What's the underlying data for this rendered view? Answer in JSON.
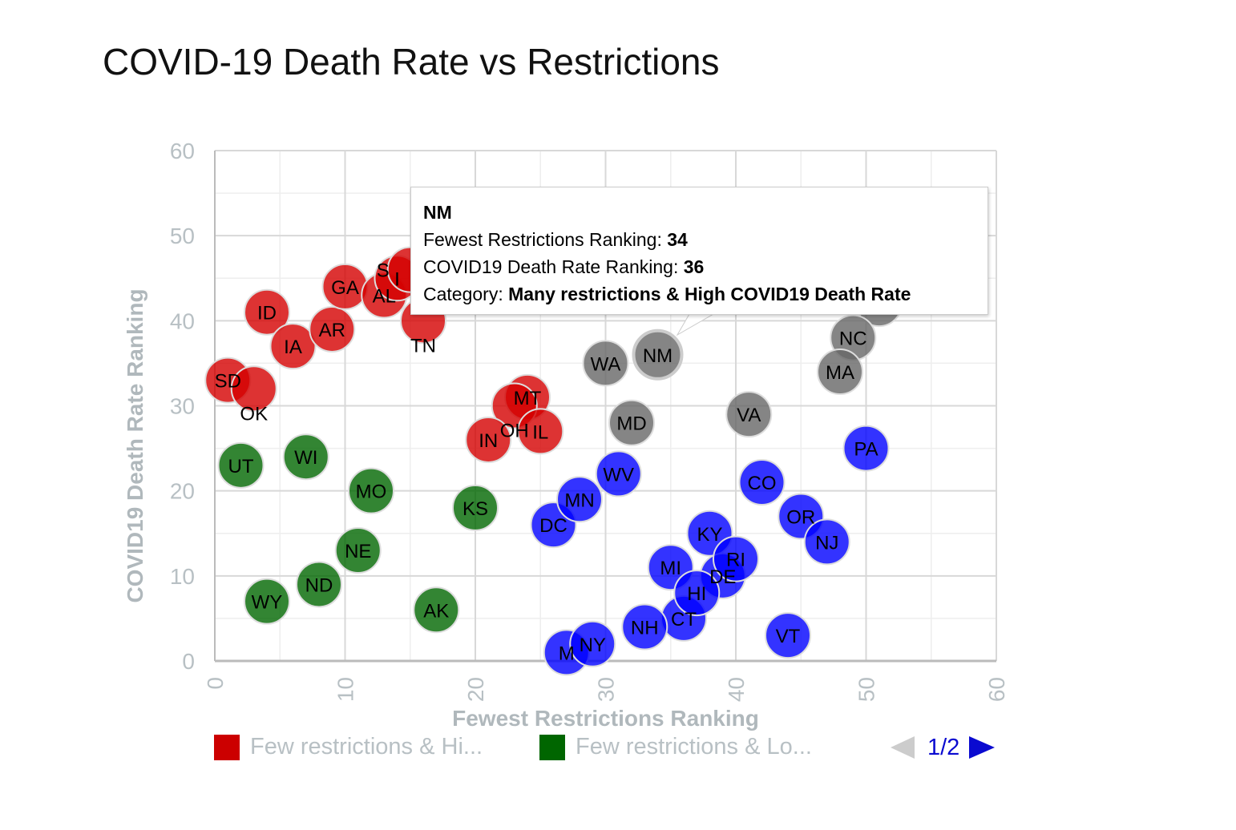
{
  "title": "COVID-19 Death Rate vs Restrictions",
  "tooltip": {
    "state": "NM",
    "x_label": "Fewest Restrictions Ranking: ",
    "x_value": "34",
    "y_label": "COVID19 Death Rate Ranking: ",
    "y_value": "36",
    "cat_label": "Category: ",
    "cat_value": "Many restrictions & High COVID19 Death Rate"
  },
  "legend": {
    "items": [
      {
        "label": "Few restrictions & Hi...",
        "color": "#cc0000"
      },
      {
        "label": "Few restrictions & Lo...",
        "color": "#006600"
      }
    ],
    "page": "1/2"
  },
  "chart_data": {
    "type": "scatter",
    "title": "COVID-19 Death Rate vs Restrictions",
    "xlabel": "Fewest Restrictions Ranking",
    "ylabel": "COVID19 Death Rate Ranking",
    "xlim": [
      0,
      60
    ],
    "ylim": [
      0,
      60
    ],
    "xticks": [
      0,
      10,
      20,
      30,
      40,
      50,
      60
    ],
    "yticks": [
      0,
      10,
      20,
      30,
      40,
      50,
      60
    ],
    "grid": true,
    "legend_position": "bottom",
    "series": [
      {
        "color": "#d40000",
        "points": [
          {
            "label": "SD",
            "x": 1,
            "y": 33
          },
          {
            "label": "OK",
            "x": 3,
            "y": 32
          },
          {
            "label": "ID",
            "x": 4,
            "y": 41
          },
          {
            "label": "IA",
            "x": 6,
            "y": 37
          },
          {
            "label": "AR",
            "x": 9,
            "y": 39
          },
          {
            "label": "GA",
            "x": 10,
            "y": 44
          },
          {
            "label": "AL",
            "x": 13,
            "y": 43
          },
          {
            "label": "I",
            "x": 14,
            "y": 45
          },
          {
            "label": "S",
            "x": 15,
            "y": 46
          },
          {
            "label": "TN",
            "x": 16,
            "y": 40
          },
          {
            "label": "MT",
            "x": 24,
            "y": 31
          },
          {
            "label": "OH",
            "x": 23,
            "y": 30
          },
          {
            "label": "IN",
            "x": 21,
            "y": 26
          },
          {
            "label": "IL",
            "x": 25,
            "y": 27
          }
        ]
      },
      {
        "color": "#006600",
        "points": [
          {
            "label": "UT",
            "x": 2,
            "y": 23
          },
          {
            "label": "WI",
            "x": 7,
            "y": 24
          },
          {
            "label": "MO",
            "x": 12,
            "y": 20
          },
          {
            "label": "KS",
            "x": 20,
            "y": 18
          },
          {
            "label": "NE",
            "x": 11,
            "y": 13
          },
          {
            "label": "ND",
            "x": 8,
            "y": 9
          },
          {
            "label": "WY",
            "x": 4,
            "y": 7
          },
          {
            "label": "AK",
            "x": 17,
            "y": 6
          }
        ]
      },
      {
        "color": "#0000ff",
        "points": [
          {
            "label": "DC",
            "x": 26,
            "y": 16
          },
          {
            "label": "MN",
            "x": 28,
            "y": 19
          },
          {
            "label": "WV",
            "x": 31,
            "y": 22
          },
          {
            "label": "KY",
            "x": 38,
            "y": 15
          },
          {
            "label": "DE",
            "x": 39,
            "y": 10
          },
          {
            "label": "RI",
            "x": 40,
            "y": 12
          },
          {
            "label": "MI",
            "x": 35,
            "y": 11
          },
          {
            "label": "CT",
            "x": 36,
            "y": 5
          },
          {
            "label": "HI",
            "x": 37,
            "y": 8
          },
          {
            "label": "NH",
            "x": 33,
            "y": 4
          },
          {
            "label": "M",
            "x": 27,
            "y": 1
          },
          {
            "label": "NY",
            "x": 29,
            "y": 2
          },
          {
            "label": "VT",
            "x": 44,
            "y": 3
          },
          {
            "label": "CO",
            "x": 42,
            "y": 21
          },
          {
            "label": "OR",
            "x": 45,
            "y": 17
          },
          {
            "label": "NJ",
            "x": 47,
            "y": 14
          },
          {
            "label": "PA",
            "x": 50,
            "y": 25
          }
        ]
      },
      {
        "color": "#666666",
        "points": [
          {
            "label": "",
            "x": 51,
            "y": 42
          },
          {
            "label": "WA",
            "x": 30,
            "y": 35
          },
          {
            "label": "NM",
            "x": 34,
            "y": 36
          },
          {
            "label": "MD",
            "x": 32,
            "y": 28
          },
          {
            "label": "VA",
            "x": 41,
            "y": 29
          },
          {
            "label": "NC",
            "x": 49,
            "y": 38
          },
          {
            "label": "MA",
            "x": 48,
            "y": 34
          }
        ]
      }
    ]
  }
}
